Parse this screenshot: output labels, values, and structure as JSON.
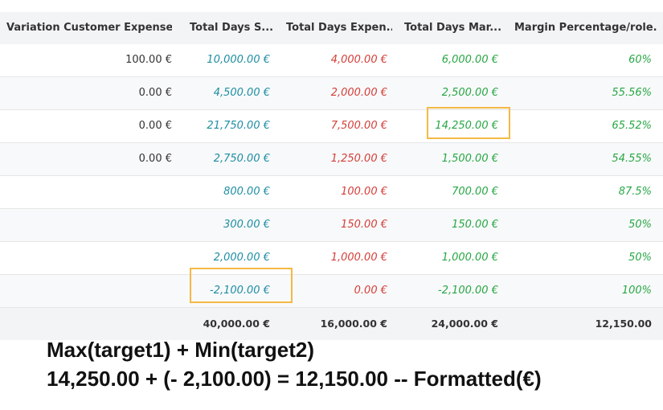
{
  "columns": [
    "Variation Customer Expense ...",
    "Total Days S...",
    "Total Days Expen...",
    "Total Days Mar...",
    "Margin Percentage/role..."
  ],
  "rows": [
    {
      "variation": "100.00 €",
      "sold": "10,000.00 €",
      "expense": "4,000.00 €",
      "margin": "6,000.00 €",
      "pct": "60%"
    },
    {
      "variation": "0.00 €",
      "sold": "4,500.00 €",
      "expense": "2,000.00 €",
      "margin": "2,500.00 €",
      "pct": "55.56%"
    },
    {
      "variation": "0.00 €",
      "sold": "21,750.00 €",
      "expense": "7,500.00 €",
      "margin": "14,250.00 €",
      "pct": "65.52%"
    },
    {
      "variation": "0.00 €",
      "sold": "2,750.00 €",
      "expense": "1,250.00 €",
      "margin": "1,500.00 €",
      "pct": "54.55%"
    },
    {
      "variation": "",
      "sold": "800.00 €",
      "expense": "100.00 €",
      "margin": "700.00 €",
      "pct": "87.5%"
    },
    {
      "variation": "",
      "sold": "300.00 €",
      "expense": "150.00 €",
      "margin": "150.00 €",
      "pct": "50%"
    },
    {
      "variation": "",
      "sold": "2,000.00 €",
      "expense": "1,000.00 €",
      "margin": "1,000.00 €",
      "pct": "50%"
    },
    {
      "variation": "",
      "sold": "-2,100.00 €",
      "expense": "0.00 €",
      "margin": "-2,100.00 €",
      "pct": "100%"
    }
  ],
  "totals": {
    "variation": "",
    "sold": "40,000.00 €",
    "expense": "16,000.00 €",
    "margin": "24,000.00 €",
    "pct": "12,150.00"
  },
  "formula": {
    "line1": "Max(target1) + Min(target2)",
    "line2": "14,250.00 + (- 2,100.00) = 12,150.00 -- Formatted(€)"
  },
  "colors": {
    "sold": "#1f8ea3",
    "expense": "#d43f3a",
    "margin": "#28a745",
    "highlight": "#f5b945"
  }
}
